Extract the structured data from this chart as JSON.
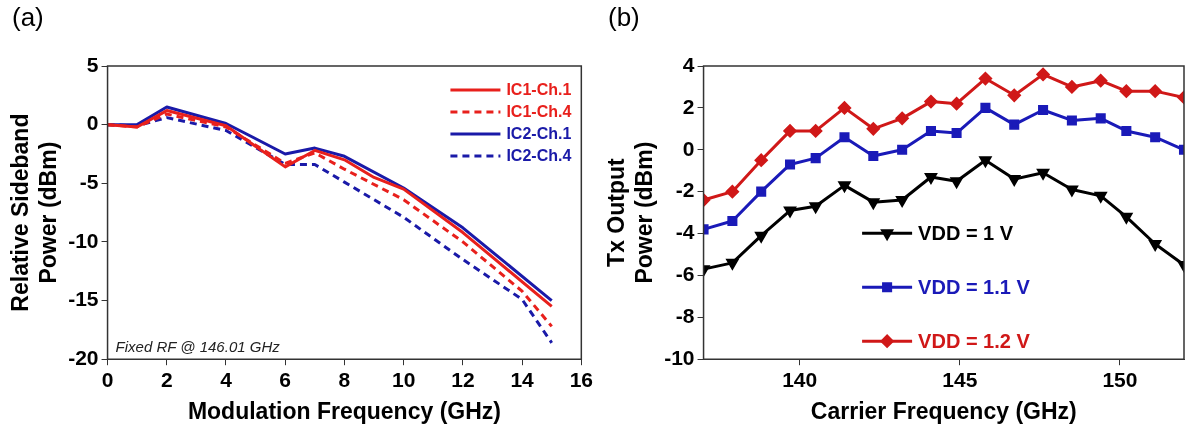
{
  "chart_data": [
    {
      "type": "line",
      "title": "(a)",
      "xlabel": "Modulation Frequency (GHz)",
      "ylabel": "Relative Sideband Power (dBm)",
      "xlim": [
        0,
        16
      ],
      "xticks": [
        0,
        2,
        4,
        6,
        8,
        10,
        12,
        14,
        16
      ],
      "ylim": [
        -20,
        5
      ],
      "yticks": [
        -20,
        -15,
        -10,
        -5,
        0,
        5
      ],
      "grid": false,
      "legend": "top right",
      "marker": "none",
      "annotations": [
        "Fixed RF @ 146.01 GHz"
      ],
      "series": [
        {
          "name": "IC1-Ch.1",
          "color": "#e8201c",
          "line_style": "solid",
          "x": [
            0,
            1,
            2,
            4,
            6,
            7,
            8,
            9,
            10,
            12,
            15
          ],
          "values": [
            0,
            -0.2,
            1.2,
            -0.1,
            -3.6,
            -2.2,
            -3.0,
            -4.5,
            -5.5,
            -9.2,
            -15.5
          ]
        },
        {
          "name": "IC1-Ch.4",
          "color": "#e8201c",
          "line_style": "dashed",
          "x": [
            0,
            1,
            2,
            4,
            6,
            7,
            8,
            10,
            12,
            14,
            15
          ],
          "values": [
            0,
            -0.2,
            0.9,
            -0.2,
            -3.3,
            -2.4,
            -3.8,
            -6.4,
            -10.0,
            -14.2,
            -17.2
          ]
        },
        {
          "name": "IC2-Ch.1",
          "color": "#1a1aa8",
          "line_style": "solid",
          "x": [
            0,
            1,
            2,
            4,
            6,
            7,
            8,
            10,
            12,
            15
          ],
          "values": [
            0,
            0,
            1.5,
            0.1,
            -2.5,
            -2.0,
            -2.7,
            -5.4,
            -8.8,
            -15.0
          ]
        },
        {
          "name": "IC2-Ch.4",
          "color": "#1a1aa8",
          "line_style": "dashed",
          "x": [
            0,
            1,
            2,
            4,
            6,
            7,
            8,
            10,
            12,
            14,
            15
          ],
          "values": [
            0,
            -0.1,
            0.6,
            -0.5,
            -3.4,
            -3.4,
            -4.9,
            -7.9,
            -11.5,
            -14.9,
            -18.6
          ]
        }
      ]
    },
    {
      "type": "line",
      "title": "(b)",
      "xlabel": "Carrier Frequency (GHz)",
      "ylabel": "Tx Output Power (dBm)",
      "xlim": [
        137,
        152
      ],
      "xticks": [
        140,
        145,
        150
      ],
      "ylim": [
        -10,
        4
      ],
      "yticks": [
        -10,
        -8,
        -6,
        -4,
        -2,
        0,
        2,
        4
      ],
      "grid": false,
      "legend": "bottom",
      "x": [
        137.0,
        137.9,
        138.8,
        139.7,
        140.5,
        141.4,
        142.3,
        143.2,
        144.1,
        144.9,
        145.8,
        146.7,
        147.6,
        148.5,
        149.4,
        150.2,
        151.1,
        152.0
      ],
      "series": [
        {
          "name": "VDD = 1 V",
          "color": "#000000",
          "marker": "triangle",
          "values": [
            -5.7,
            -5.4,
            -4.1,
            -2.9,
            -2.7,
            -1.7,
            -2.5,
            -2.4,
            -1.3,
            -1.5,
            -0.5,
            -1.4,
            -1.1,
            -1.9,
            -2.2,
            -3.2,
            -4.5,
            -5.5
          ]
        },
        {
          "name": "VDD = 1.1 V",
          "color": "#1a1ab8",
          "marker": "square",
          "values": [
            -3.8,
            -3.4,
            -2.0,
            -0.7,
            -0.4,
            0.6,
            -0.3,
            0.0,
            0.9,
            0.8,
            2.0,
            1.2,
            1.9,
            1.4,
            1.5,
            0.9,
            0.6,
            0.0
          ]
        },
        {
          "name": "VDD = 1.2 V",
          "color": "#d01818",
          "marker": "diamond",
          "values": [
            -2.4,
            -2.0,
            -0.5,
            0.9,
            0.9,
            2.0,
            1.0,
            1.5,
            2.3,
            2.2,
            3.4,
            2.6,
            3.6,
            3.0,
            3.3,
            2.8,
            2.8,
            2.5
          ]
        }
      ]
    }
  ]
}
